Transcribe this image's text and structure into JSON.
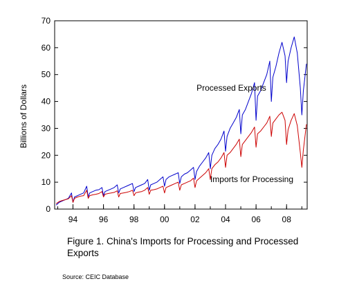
{
  "chart_data": {
    "type": "line",
    "ylabel": "Billions of Dollars",
    "xlabel": "",
    "ylim": [
      0,
      70
    ],
    "xlim": [
      1992.8,
      2009.35
    ],
    "yticks": [
      0,
      10,
      20,
      30,
      40,
      50,
      60,
      70
    ],
    "xticks": [
      {
        "x": 1994,
        "label": "94"
      },
      {
        "x": 1996,
        "label": "96"
      },
      {
        "x": 1998,
        "label": "98"
      },
      {
        "x": 2000,
        "label": "00"
      },
      {
        "x": 2002,
        "label": "02"
      },
      {
        "x": 2004,
        "label": "04"
      },
      {
        "x": 2006,
        "label": "06"
      },
      {
        "x": 2008,
        "label": "08"
      }
    ],
    "grid": false,
    "series": [
      {
        "name": "Processed Exports",
        "color": "#0000cc",
        "x": [
          1992.9,
          1993.1,
          1993.3,
          1993.5,
          1993.7,
          1993.9,
          1994.0,
          1994.1,
          1994.3,
          1994.5,
          1994.7,
          1994.9,
          1995.0,
          1995.1,
          1995.3,
          1995.5,
          1995.7,
          1995.9,
          1996.0,
          1996.1,
          1996.3,
          1996.5,
          1996.7,
          1996.9,
          1997.0,
          1997.1,
          1997.3,
          1997.5,
          1997.7,
          1997.9,
          1998.0,
          1998.1,
          1998.3,
          1998.5,
          1998.7,
          1998.9,
          1999.0,
          1999.1,
          1999.3,
          1999.5,
          1999.7,
          1999.9,
          2000.0,
          2000.1,
          2000.3,
          2000.5,
          2000.7,
          2000.9,
          2001.0,
          2001.1,
          2001.3,
          2001.5,
          2001.7,
          2001.9,
          2002.0,
          2002.1,
          2002.3,
          2002.5,
          2002.7,
          2002.9,
          2003.0,
          2003.1,
          2003.3,
          2003.5,
          2003.7,
          2003.9,
          2004.0,
          2004.1,
          2004.3,
          2004.5,
          2004.7,
          2004.9,
          2005.0,
          2005.1,
          2005.3,
          2005.5,
          2005.7,
          2005.9,
          2006.0,
          2006.1,
          2006.3,
          2006.5,
          2006.7,
          2006.9,
          2007.0,
          2007.1,
          2007.3,
          2007.5,
          2007.7,
          2007.9,
          2008.0,
          2008.1,
          2008.3,
          2008.5,
          2008.7,
          2008.9,
          2009.0,
          2009.1,
          2009.3
        ],
        "values": [
          1.5,
          2.5,
          3.0,
          3.5,
          4.0,
          6.0,
          2.5,
          4.5,
          5.0,
          5.5,
          6.0,
          8.5,
          4.5,
          6.0,
          6.5,
          7.0,
          7.2,
          8.0,
          5.0,
          6.5,
          7.0,
          7.5,
          8.0,
          9.0,
          6.0,
          7.5,
          8.0,
          8.5,
          9.0,
          9.5,
          6.5,
          8.0,
          8.5,
          9.0,
          9.5,
          11.0,
          7.0,
          9.0,
          9.5,
          10.0,
          11.0,
          12.0,
          8.5,
          11.0,
          12.0,
          12.5,
          13.0,
          13.5,
          9.5,
          12.0,
          13.0,
          13.5,
          14.5,
          15.5,
          11.0,
          14.0,
          16.0,
          17.5,
          19.0,
          21.0,
          15.0,
          20.0,
          22.5,
          24.0,
          26.0,
          29.0,
          21.5,
          27.0,
          30.0,
          32.0,
          34.0,
          37.0,
          28.0,
          35.0,
          37.0,
          40.0,
          43.0,
          47.0,
          33.0,
          42.0,
          44.0,
          47.0,
          50.0,
          55.0,
          40.0,
          49.0,
          53.0,
          58.0,
          62.0,
          57.0,
          47.0,
          55.0,
          60.0,
          64.0,
          58.0,
          45.0,
          35.0,
          44.0,
          54.0
        ]
      },
      {
        "name": "Imports for Processing",
        "color": "#cc0000",
        "x": [
          1992.9,
          1993.1,
          1993.3,
          1993.5,
          1993.7,
          1993.9,
          1994.0,
          1994.1,
          1994.3,
          1994.5,
          1994.7,
          1994.9,
          1995.0,
          1995.1,
          1995.3,
          1995.5,
          1995.7,
          1995.9,
          1996.0,
          1996.1,
          1996.3,
          1996.5,
          1996.7,
          1996.9,
          1997.0,
          1997.1,
          1997.3,
          1997.5,
          1997.7,
          1997.9,
          1998.0,
          1998.1,
          1998.3,
          1998.5,
          1998.7,
          1998.9,
          1999.0,
          1999.1,
          1999.3,
          1999.5,
          1999.7,
          1999.9,
          2000.0,
          2000.1,
          2000.3,
          2000.5,
          2000.7,
          2000.9,
          2001.0,
          2001.1,
          2001.3,
          2001.5,
          2001.7,
          2001.9,
          2002.0,
          2002.1,
          2002.3,
          2002.5,
          2002.7,
          2002.9,
          2003.0,
          2003.1,
          2003.3,
          2003.5,
          2003.7,
          2003.9,
          2004.0,
          2004.1,
          2004.3,
          2004.5,
          2004.7,
          2004.9,
          2005.0,
          2005.1,
          2005.3,
          2005.5,
          2005.7,
          2005.9,
          2006.0,
          2006.1,
          2006.3,
          2006.5,
          2006.7,
          2006.9,
          2007.0,
          2007.1,
          2007.3,
          2007.5,
          2007.7,
          2007.9,
          2008.0,
          2008.1,
          2008.3,
          2008.5,
          2008.7,
          2008.9,
          2009.0,
          2009.1,
          2009.3
        ],
        "values": [
          2.0,
          2.8,
          3.2,
          3.5,
          3.8,
          5.0,
          2.5,
          4.0,
          4.5,
          4.8,
          5.0,
          7.0,
          4.0,
          5.0,
          5.3,
          5.5,
          5.8,
          6.5,
          4.5,
          5.5,
          5.8,
          6.0,
          6.2,
          6.8,
          4.5,
          5.8,
          6.0,
          6.2,
          6.5,
          7.0,
          5.0,
          6.0,
          6.3,
          6.5,
          7.0,
          8.0,
          5.5,
          7.0,
          7.2,
          7.5,
          8.0,
          8.5,
          6.0,
          8.0,
          8.5,
          9.0,
          9.5,
          10.0,
          7.0,
          9.0,
          9.5,
          10.0,
          10.5,
          11.5,
          8.0,
          10.5,
          11.5,
          12.5,
          13.5,
          15.0,
          11.0,
          15.0,
          16.5,
          17.5,
          19.0,
          21.0,
          15.5,
          20.0,
          21.0,
          22.5,
          24.0,
          26.0,
          19.5,
          24.0,
          25.5,
          27.0,
          28.5,
          30.5,
          23.0,
          28.0,
          29.0,
          30.5,
          32.0,
          34.5,
          27.0,
          32.0,
          33.5,
          35.0,
          36.0,
          33.0,
          24.0,
          29.5,
          33.0,
          35.5,
          31.0,
          21.0,
          15.5,
          22.0,
          31.5
        ]
      }
    ],
    "annotations": [
      {
        "text": "Processed Exports",
        "x": 2002.1,
        "y": 44.0
      },
      {
        "text": "Imports for Processing",
        "x": 2003.0,
        "y": 10.0
      }
    ]
  },
  "caption": {
    "line1": "Figure 1.  China's Imports for Processing and Processed",
    "line2": "Exports"
  },
  "source": "Source: CEIC Database"
}
